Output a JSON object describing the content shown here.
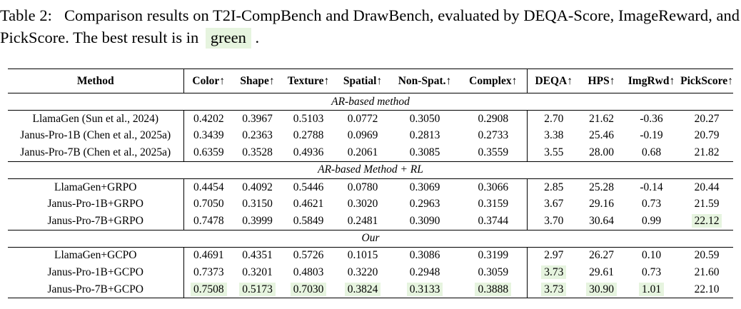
{
  "caption": {
    "prefix": "Table 2:",
    "text": "Comparison results on T2I-CompBench and DrawBench, evaluated by DEQA-Score, ImageReward, and PickScore. The best result is in",
    "highlight_word": "green",
    "suffix": "."
  },
  "table": {
    "headers": [
      "Method",
      "Color↑",
      "Shape↑",
      "Texture↑",
      "Spatial↑",
      "Non-Spat.↑",
      "Complex↑",
      "DEQA↑",
      "HPS↑",
      "ImgRwd↑",
      "PickScore↑"
    ],
    "sections": [
      {
        "title": "AR-based method",
        "rows": [
          {
            "method": "LlamaGen (Sun et al., 2024)",
            "values": [
              "0.4202",
              "0.3967",
              "0.5103",
              "0.0772",
              "0.3050",
              "0.2908",
              "2.70",
              "21.62",
              "-0.36",
              "20.27"
            ],
            "best": []
          },
          {
            "method": "Janus-Pro-1B (Chen et al., 2025a)",
            "values": [
              "0.3439",
              "0.2363",
              "0.2788",
              "0.0969",
              "0.2813",
              "0.2733",
              "3.38",
              "25.46",
              "-0.19",
              "20.79"
            ],
            "best": []
          },
          {
            "method": "Janus-Pro-7B (Chen et al., 2025a)",
            "values": [
              "0.6359",
              "0.3528",
              "0.4936",
              "0.2061",
              "0.3085",
              "0.3559",
              "3.55",
              "28.00",
              "0.68",
              "21.82"
            ],
            "best": []
          }
        ]
      },
      {
        "title": "AR-based Method + RL",
        "rows": [
          {
            "method": "LlamaGen+GRPO",
            "values": [
              "0.4454",
              "0.4092",
              "0.5446",
              "0.0780",
              "0.3069",
              "0.3066",
              "2.85",
              "25.28",
              "-0.14",
              "20.44"
            ],
            "best": []
          },
          {
            "method": "Janus-Pro-1B+GRPO",
            "values": [
              "0.7050",
              "0.3150",
              "0.4621",
              "0.3020",
              "0.2963",
              "0.3159",
              "3.67",
              "29.16",
              "0.73",
              "21.59"
            ],
            "best": []
          },
          {
            "method": "Janus-Pro-7B+GRPO",
            "values": [
              "0.7478",
              "0.3999",
              "0.5849",
              "0.2481",
              "0.3090",
              "0.3744",
              "3.70",
              "30.64",
              "0.99",
              "22.12"
            ],
            "best": [
              9
            ]
          }
        ]
      },
      {
        "title": "Our",
        "rows": [
          {
            "method": "LlamaGen+GCPO",
            "values": [
              "0.4691",
              "0.4351",
              "0.5726",
              "0.1015",
              "0.3086",
              "0.3199",
              "2.97",
              "26.27",
              "0.10",
              "20.59"
            ],
            "best": []
          },
          {
            "method": "Janus-Pro-1B+GCPO",
            "values": [
              "0.7373",
              "0.3201",
              "0.4803",
              "0.3220",
              "0.2948",
              "0.3059",
              "3.73",
              "29.61",
              "0.73",
              "21.60"
            ],
            "best": [
              6
            ]
          },
          {
            "method": "Janus-Pro-7B+GCPO",
            "values": [
              "0.7508",
              "0.5173",
              "0.7030",
              "0.3824",
              "0.3133",
              "0.3888",
              "3.73",
              "30.90",
              "1.01",
              "22.10"
            ],
            "best": [
              0,
              1,
              2,
              3,
              4,
              5,
              6,
              7,
              8
            ]
          }
        ]
      }
    ],
    "highlight_color": "#e6f4df"
  }
}
